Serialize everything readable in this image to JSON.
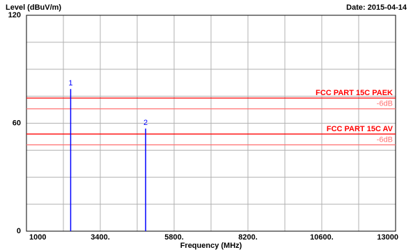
{
  "chart_data": {
    "type": "spectrum",
    "y_label": "Level (dBuV/m)",
    "date": "Date: 2015-04-14",
    "x_label": "Frequency (MHz)",
    "xlim": [
      1000,
      13000
    ],
    "ylim": [
      0,
      120
    ],
    "xticks": [
      {
        "value": 1000,
        "label": "1000"
      },
      {
        "value": 3400,
        "label": "3400."
      },
      {
        "value": 5800,
        "label": "5800."
      },
      {
        "value": 8200,
        "label": "8200."
      },
      {
        "value": 10600,
        "label": "10600."
      },
      {
        "value": 13000,
        "label": "13000"
      }
    ],
    "yticks": [
      0,
      60,
      120
    ],
    "xgrid": [
      2200,
      4600,
      7000,
      9400,
      11800
    ],
    "ygrid": [
      15,
      30,
      45,
      75,
      90,
      105
    ],
    "grid": true,
    "limits": [
      {
        "name": "FCC PART 15C PAEK",
        "value": 74,
        "color": "#ff0000"
      },
      {
        "name": "-6dB",
        "value": 68,
        "color": "#ff7070"
      },
      {
        "name": "FCC PART 15C AV",
        "value": 54,
        "color": "#ff0000"
      },
      {
        "name": "-6dB",
        "value": 48,
        "color": "#ff7070"
      }
    ],
    "markers": {
      "labels": [
        "1",
        "2"
      ],
      "x": [
        2437,
        4874
      ],
      "values": [
        79,
        57
      ],
      "color": "#0000ff"
    }
  }
}
